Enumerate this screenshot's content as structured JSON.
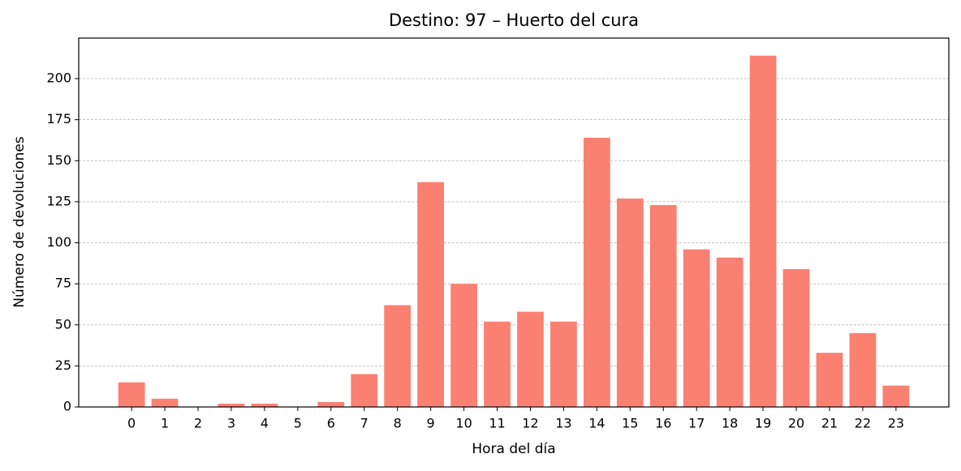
{
  "chart_data": {
    "type": "bar",
    "title": "Destino: 97 – Huerto del cura",
    "x_label": "Hora del día",
    "y_label": "Número de devoluciones",
    "x": [
      0,
      1,
      2,
      3,
      4,
      5,
      6,
      7,
      8,
      9,
      10,
      11,
      12,
      13,
      14,
      15,
      16,
      17,
      18,
      19,
      20,
      21,
      22,
      23
    ],
    "values": [
      15,
      5,
      0,
      2,
      2,
      0,
      3,
      20,
      62,
      137,
      75,
      52,
      58,
      52,
      164,
      127,
      123,
      96,
      91,
      214,
      84,
      33,
      45,
      13
    ],
    "color": "#fa8072",
    "xlim": [
      -1.59,
      24.59
    ],
    "xticks": [
      0,
      1,
      2,
      3,
      4,
      5,
      6,
      7,
      8,
      9,
      10,
      11,
      12,
      13,
      14,
      15,
      16,
      17,
      18,
      19,
      20,
      21,
      22,
      23
    ],
    "ylim": [
      0,
      224.7
    ],
    "yticks": [
      0,
      25,
      50,
      75,
      100,
      125,
      150,
      175,
      200
    ],
    "grid": true
  }
}
